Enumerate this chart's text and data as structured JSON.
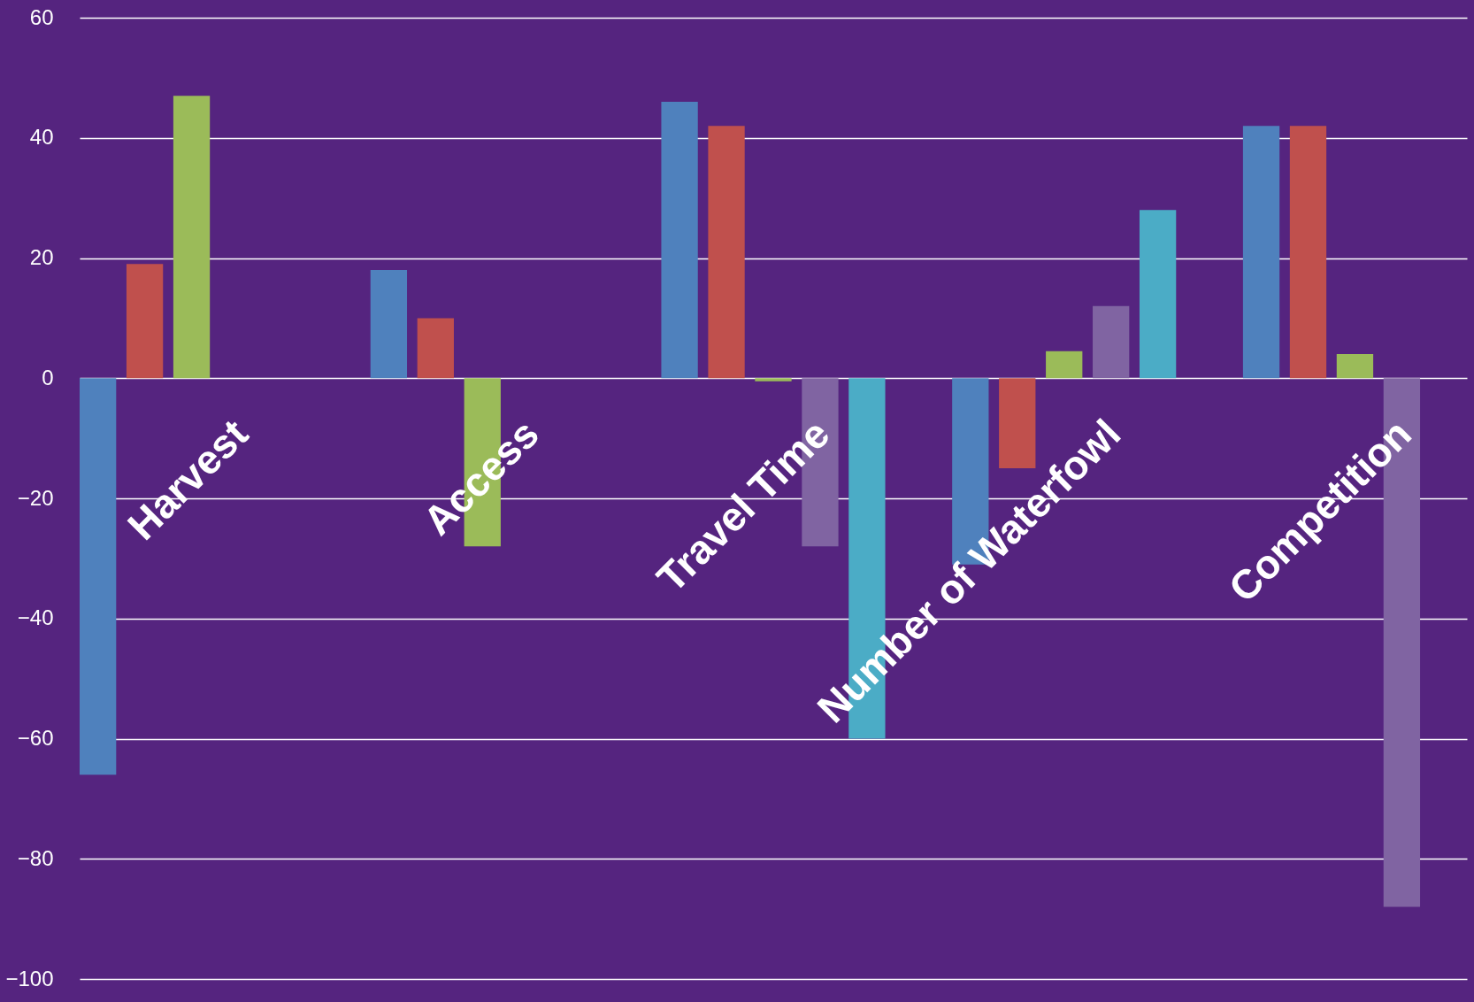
{
  "chart_data": {
    "type": "bar",
    "categories": [
      "Harvest",
      "Access",
      "Travel Time",
      "Number of Waterfowl",
      "Competition"
    ],
    "series": [
      {
        "color": "#4f81bd",
        "values": [
          -66,
          18,
          46,
          -31,
          42
        ]
      },
      {
        "color": "#c0504d",
        "values": [
          19,
          10,
          42,
          -15,
          42
        ]
      },
      {
        "color": "#9bbb59",
        "values": [
          47,
          -28,
          -0.5,
          4.5,
          4
        ]
      },
      {
        "color": "#8064a2",
        "values": [
          null,
          null,
          -28,
          12,
          -88
        ]
      },
      {
        "color": "#4bacc6",
        "values": [
          null,
          null,
          -60,
          28,
          null
        ]
      }
    ],
    "ylim": [
      -100,
      60
    ],
    "yticks": [
      -100,
      -80,
      -60,
      -40,
      -20,
      0,
      20,
      40,
      60
    ],
    "grid": "y"
  }
}
